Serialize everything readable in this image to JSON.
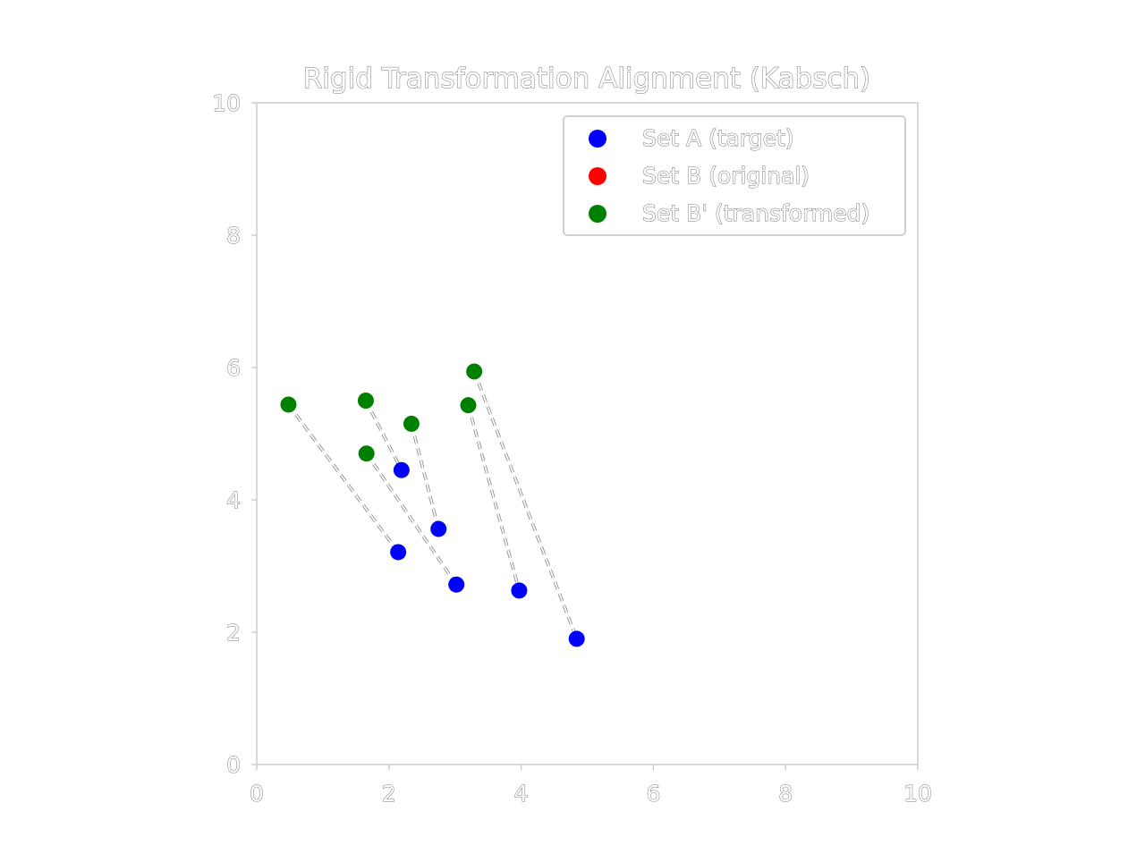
{
  "chart_data": {
    "type": "scatter",
    "title": "Rigid Transformation Alignment (Kabsch)",
    "xlabel": "",
    "ylabel": "",
    "xlim": [
      0,
      10
    ],
    "ylim": [
      0,
      10
    ],
    "x_ticks": [
      0,
      2,
      4,
      6,
      8,
      10
    ],
    "y_ticks": [
      0,
      2,
      4,
      6,
      8,
      10
    ],
    "grid": false,
    "legend_position": "top-right",
    "series": [
      {
        "name": "Set A (target)",
        "color": "#0000ff",
        "points": [
          [
            2.14,
            3.21
          ],
          [
            2.19,
            4.45
          ],
          [
            2.75,
            3.56
          ],
          [
            3.02,
            2.72
          ],
          [
            3.97,
            2.63
          ],
          [
            4.84,
            1.9
          ]
        ]
      },
      {
        "name": "Set B (original)",
        "color": "#ff0000",
        "points": []
      },
      {
        "name": "Set B' (transformed)",
        "color": "#008000",
        "points": [
          [
            0.48,
            5.44
          ],
          [
            1.65,
            5.5
          ],
          [
            2.34,
            5.15
          ],
          [
            1.66,
            4.7
          ],
          [
            3.2,
            5.43
          ],
          [
            3.29,
            5.94
          ]
        ]
      }
    ],
    "connections": [
      {
        "from": [
          0.48,
          5.44
        ],
        "to": [
          2.14,
          3.21
        ]
      },
      {
        "from": [
          1.65,
          5.5
        ],
        "to": [
          2.19,
          4.45
        ]
      },
      {
        "from": [
          2.34,
          5.15
        ],
        "to": [
          2.75,
          3.56
        ]
      },
      {
        "from": [
          1.66,
          4.7
        ],
        "to": [
          3.02,
          2.72
        ]
      },
      {
        "from": [
          3.2,
          5.43
        ],
        "to": [
          3.97,
          2.63
        ]
      },
      {
        "from": [
          3.29,
          5.94
        ],
        "to": [
          4.84,
          1.9
        ]
      }
    ]
  }
}
